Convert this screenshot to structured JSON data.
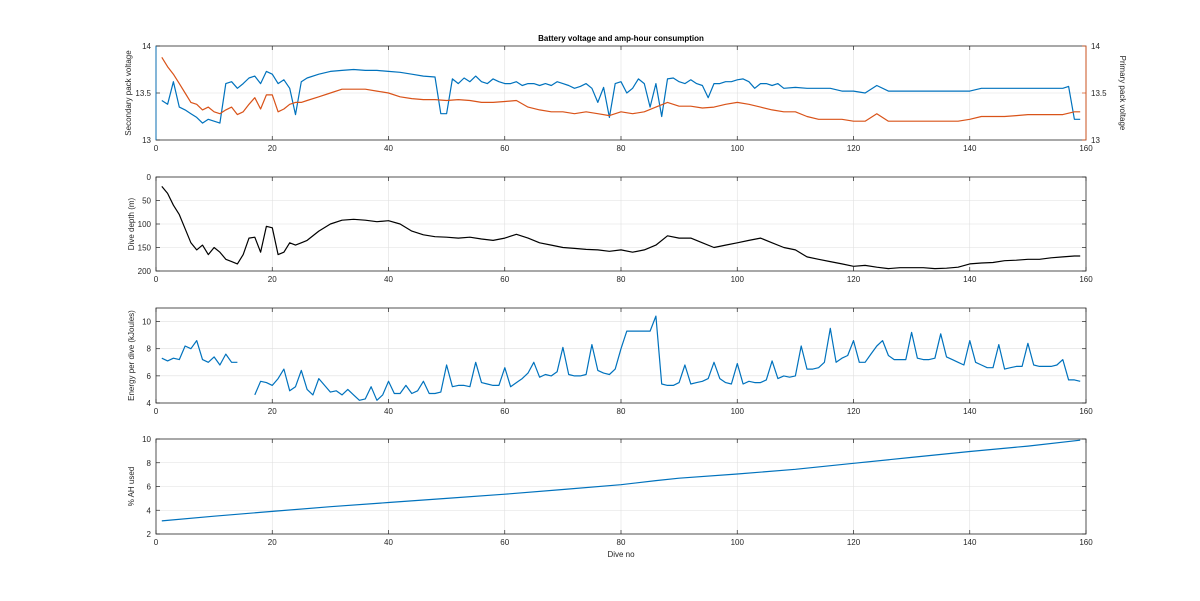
{
  "chart_data": [
    {
      "type": "line",
      "title": "Battery voltage and amp-hour consumption",
      "xlabel": "",
      "ylabel_left": "Secondary pack voltage",
      "ylabel_right": "Primary pack voltage",
      "xlim": [
        0,
        160
      ],
      "ylim": [
        13,
        14
      ],
      "ylim_right": [
        13,
        14
      ],
      "xticks": [
        0,
        20,
        40,
        60,
        80,
        100,
        120,
        140,
        160
      ],
      "yticks": [
        13,
        13.5,
        14
      ],
      "ytick_labels": [
        "13",
        "13.5",
        "14"
      ],
      "ytick_labels_right": [
        "13",
        "13.5",
        "14"
      ],
      "colors": {
        "left": "#0072bd",
        "right": "#d95319"
      },
      "grid": true,
      "series": [
        {
          "axis": "left",
          "color": "#0072bd",
          "x": [
            1,
            2,
            3,
            4,
            5,
            6,
            7,
            8,
            9,
            10,
            11,
            12,
            13,
            14,
            15,
            16,
            17,
            18,
            19,
            20,
            21,
            22,
            23,
            24,
            25,
            26,
            28,
            30,
            32,
            34,
            36,
            38,
            40,
            42,
            44,
            46,
            48,
            49,
            50,
            51,
            52,
            53,
            54,
            55,
            56,
            57,
            58,
            59,
            60,
            61,
            62,
            63,
            64,
            65,
            66,
            67,
            68,
            69,
            70,
            71,
            72,
            73,
            74,
            75,
            76,
            77,
            78,
            79,
            80,
            81,
            82,
            83,
            84,
            85,
            86,
            87,
            88,
            89,
            90,
            91,
            92,
            93,
            94,
            95,
            96,
            97,
            98,
            99,
            100,
            101,
            102,
            103,
            104,
            105,
            106,
            107,
            108,
            110,
            112,
            114,
            116,
            118,
            120,
            122,
            124,
            126,
            128,
            130,
            132,
            134,
            136,
            138,
            140,
            142,
            144,
            146,
            148,
            150,
            152,
            154,
            156,
            157,
            158,
            159
          ],
          "y": [
            13.42,
            13.38,
            13.62,
            13.35,
            13.32,
            13.28,
            13.24,
            13.18,
            13.22,
            13.2,
            13.18,
            13.6,
            13.62,
            13.55,
            13.6,
            13.66,
            13.68,
            13.6,
            13.73,
            13.7,
            13.6,
            13.64,
            13.55,
            13.27,
            13.62,
            13.66,
            13.7,
            13.73,
            13.74,
            13.75,
            13.74,
            13.74,
            13.73,
            13.72,
            13.7,
            13.68,
            13.67,
            13.28,
            13.28,
            13.65,
            13.6,
            13.66,
            13.62,
            13.68,
            13.62,
            13.6,
            13.65,
            13.62,
            13.6,
            13.6,
            13.62,
            13.58,
            13.6,
            13.6,
            13.58,
            13.6,
            13.58,
            13.62,
            13.6,
            13.58,
            13.55,
            13.57,
            13.6,
            13.55,
            13.4,
            13.56,
            13.24,
            13.6,
            13.62,
            13.5,
            13.55,
            13.65,
            13.6,
            13.35,
            13.6,
            13.25,
            13.65,
            13.66,
            13.62,
            13.6,
            13.64,
            13.6,
            13.58,
            13.45,
            13.6,
            13.6,
            13.62,
            13.62,
            13.64,
            13.65,
            13.62,
            13.55,
            13.6,
            13.6,
            13.58,
            13.6,
            13.55,
            13.56,
            13.55,
            13.55,
            13.55,
            13.52,
            13.52,
            13.5,
            13.58,
            13.52,
            13.52,
            13.52,
            13.52,
            13.52,
            13.52,
            13.52,
            13.52,
            13.55,
            13.55,
            13.55,
            13.55,
            13.55,
            13.55,
            13.55,
            13.55,
            13.57,
            13.22,
            13.22
          ]
        },
        {
          "axis": "right",
          "color": "#d95319",
          "x": [
            1,
            2,
            3,
            4,
            5,
            6,
            7,
            8,
            9,
            10,
            11,
            12,
            13,
            14,
            15,
            16,
            17,
            18,
            19,
            20,
            21,
            22,
            23,
            24,
            25,
            26,
            28,
            30,
            32,
            34,
            36,
            38,
            40,
            42,
            44,
            46,
            48,
            50,
            52,
            54,
            56,
            58,
            60,
            62,
            64,
            66,
            68,
            70,
            72,
            74,
            76,
            78,
            80,
            82,
            84,
            86,
            88,
            90,
            92,
            94,
            96,
            98,
            100,
            102,
            104,
            106,
            108,
            110,
            112,
            114,
            116,
            118,
            120,
            122,
            124,
            126,
            128,
            130,
            132,
            134,
            136,
            138,
            140,
            142,
            144,
            146,
            148,
            150,
            152,
            154,
            156,
            158,
            159
          ],
          "y": [
            13.88,
            13.78,
            13.7,
            13.6,
            13.5,
            13.4,
            13.38,
            13.32,
            13.35,
            13.3,
            13.28,
            13.32,
            13.35,
            13.27,
            13.3,
            13.38,
            13.45,
            13.33,
            13.48,
            13.48,
            13.3,
            13.33,
            13.38,
            13.4,
            13.4,
            13.42,
            13.46,
            13.5,
            13.54,
            13.54,
            13.54,
            13.52,
            13.5,
            13.46,
            13.44,
            13.43,
            13.43,
            13.42,
            13.43,
            13.42,
            13.4,
            13.4,
            13.41,
            13.42,
            13.35,
            13.32,
            13.3,
            13.3,
            13.28,
            13.3,
            13.28,
            13.26,
            13.3,
            13.28,
            13.3,
            13.35,
            13.4,
            13.36,
            13.36,
            13.34,
            13.35,
            13.38,
            13.4,
            13.38,
            13.35,
            13.32,
            13.3,
            13.3,
            13.25,
            13.22,
            13.22,
            13.22,
            13.2,
            13.2,
            13.28,
            13.2,
            13.2,
            13.2,
            13.2,
            13.2,
            13.2,
            13.2,
            13.22,
            13.25,
            13.25,
            13.25,
            13.26,
            13.27,
            13.27,
            13.27,
            13.27,
            13.3,
            13.3
          ]
        }
      ]
    },
    {
      "type": "line",
      "title": "",
      "xlabel": "",
      "ylabel": "Dive depth (m)",
      "xlim": [
        0,
        160
      ],
      "ylim": [
        0,
        200
      ],
      "y_reversed": true,
      "xticks": [
        0,
        20,
        40,
        60,
        80,
        100,
        120,
        140,
        160
      ],
      "yticks": [
        0,
        50,
        100,
        150,
        200
      ],
      "colors": {
        "line": "#000000"
      },
      "grid": true,
      "series": [
        {
          "color": "#000000",
          "x": [
            1,
            2,
            3,
            4,
            5,
            6,
            7,
            8,
            9,
            10,
            11,
            12,
            13,
            14,
            15,
            16,
            17,
            18,
            19,
            20,
            21,
            22,
            23,
            24,
            25,
            26,
            28,
            30,
            32,
            34,
            36,
            38,
            40,
            42,
            44,
            46,
            48,
            50,
            52,
            54,
            56,
            58,
            60,
            62,
            64,
            66,
            68,
            70,
            72,
            74,
            76,
            78,
            80,
            82,
            84,
            86,
            88,
            90,
            92,
            94,
            96,
            98,
            100,
            102,
            104,
            106,
            108,
            110,
            112,
            114,
            116,
            118,
            120,
            122,
            124,
            126,
            128,
            130,
            132,
            134,
            136,
            138,
            140,
            142,
            144,
            146,
            148,
            150,
            152,
            154,
            156,
            158,
            159
          ],
          "y": [
            20,
            35,
            60,
            80,
            110,
            140,
            155,
            145,
            165,
            150,
            160,
            175,
            180,
            185,
            165,
            130,
            128,
            160,
            105,
            108,
            165,
            160,
            140,
            145,
            140,
            135,
            115,
            100,
            92,
            90,
            92,
            95,
            93,
            100,
            115,
            123,
            127,
            128,
            130,
            128,
            132,
            135,
            130,
            122,
            130,
            140,
            145,
            150,
            152,
            154,
            155,
            158,
            155,
            160,
            155,
            145,
            125,
            130,
            130,
            140,
            150,
            145,
            140,
            135,
            130,
            140,
            150,
            155,
            170,
            175,
            180,
            185,
            190,
            188,
            192,
            195,
            193,
            193,
            193,
            195,
            194,
            192,
            185,
            183,
            182,
            178,
            177,
            175,
            175,
            172,
            170,
            168,
            168
          ]
        }
      ]
    },
    {
      "type": "line",
      "title": "",
      "xlabel": "",
      "ylabel": "Energy per dive (kJoules)",
      "xlim": [
        0,
        160
      ],
      "ylim": [
        4,
        11
      ],
      "xticks": [
        0,
        20,
        40,
        60,
        80,
        100,
        120,
        140,
        160
      ],
      "yticks": [
        4,
        6,
        8,
        10
      ],
      "colors": {
        "line": "#0072bd"
      },
      "grid": true,
      "series": [
        {
          "color": "#0072bd",
          "x": [
            1,
            2,
            3,
            4,
            5,
            6,
            7,
            8,
            9,
            10,
            11,
            12,
            13,
            14
          ],
          "y": [
            7.3,
            7.1,
            7.3,
            7.2,
            8.2,
            8.0,
            8.6,
            7.2,
            7.0,
            7.4,
            6.8,
            7.6,
            7.0,
            7.0
          ]
        },
        {
          "color": "#0072bd",
          "x": [
            17,
            18,
            19,
            20,
            21,
            22,
            23,
            24,
            25,
            26,
            27,
            28,
            29,
            30,
            31,
            32,
            33,
            34,
            35,
            36,
            37,
            38,
            39,
            40,
            41,
            42,
            43,
            44,
            45,
            46,
            47,
            48,
            49,
            50,
            51,
            52,
            53,
            54,
            55,
            56,
            57,
            58,
            59,
            60,
            61,
            62,
            63,
            64,
            65,
            66,
            67,
            68,
            69,
            70,
            71,
            72,
            73,
            74,
            75,
            76,
            77,
            78,
            79,
            80,
            81,
            82,
            83,
            84,
            85,
            86,
            87,
            88,
            89,
            90,
            91,
            92,
            93,
            94,
            95,
            96,
            97,
            98,
            99,
            100,
            101,
            102,
            103,
            104,
            105,
            106,
            107,
            108,
            109,
            110,
            111,
            112,
            113,
            114,
            115,
            116,
            117,
            118,
            119,
            120,
            121,
            122,
            123,
            124,
            125,
            126,
            127,
            128,
            129,
            130,
            131,
            132,
            133,
            134,
            135,
            136,
            137,
            138,
            139,
            140,
            141,
            142,
            143,
            144,
            145,
            146,
            147,
            148,
            149,
            150,
            151,
            152,
            153,
            154,
            155,
            156,
            157,
            158,
            159
          ],
          "y": [
            4.6,
            5.6,
            5.5,
            5.3,
            5.8,
            6.5,
            4.9,
            5.2,
            6.4,
            5.0,
            4.6,
            5.8,
            5.3,
            4.8,
            4.9,
            4.6,
            5.0,
            4.6,
            4.2,
            4.3,
            5.2,
            4.2,
            4.6,
            5.6,
            4.7,
            4.7,
            5.3,
            4.7,
            4.9,
            5.6,
            4.7,
            4.7,
            4.8,
            6.8,
            5.2,
            5.3,
            5.3,
            5.2,
            7.0,
            5.5,
            5.4,
            5.3,
            5.3,
            6.6,
            5.2,
            5.5,
            5.8,
            6.2,
            7.0,
            5.9,
            6.1,
            6.0,
            6.3,
            8.1,
            6.1,
            6.0,
            6.0,
            6.1,
            8.3,
            6.4,
            6.2,
            6.1,
            6.5,
            8.0,
            9.3,
            9.3,
            9.3,
            9.3,
            9.3,
            10.4,
            5.4,
            5.3,
            5.3,
            5.5,
            6.8,
            5.4,
            5.5,
            5.6,
            5.8,
            7.0,
            5.8,
            5.5,
            5.4,
            6.9,
            5.4,
            5.6,
            5.5,
            5.5,
            5.7,
            7.1,
            5.8,
            6.0,
            5.9,
            6.0,
            8.2,
            6.5,
            6.5,
            6.6,
            7.0,
            9.5,
            7.0,
            7.3,
            7.5,
            8.6,
            7.0,
            7.0,
            7.6,
            8.2,
            8.6,
            7.5,
            7.2,
            7.2,
            7.2,
            9.2,
            7.3,
            7.2,
            7.2,
            7.3,
            9.1,
            7.4,
            7.2,
            7.0,
            6.8,
            8.6,
            7.0,
            6.8,
            6.6,
            6.6,
            8.3,
            6.5,
            6.6,
            6.7,
            6.7,
            8.4,
            6.8,
            6.7,
            6.7,
            6.7,
            6.8,
            7.2,
            5.7,
            5.7,
            5.6
          ]
        }
      ]
    },
    {
      "type": "line",
      "title": "",
      "xlabel": "Dive no",
      "ylabel": "% AH used",
      "xlim": [
        0,
        160
      ],
      "ylim": [
        2,
        10
      ],
      "xticks": [
        0,
        20,
        40,
        60,
        80,
        100,
        120,
        140,
        160
      ],
      "yticks": [
        2,
        4,
        6,
        8,
        10
      ],
      "colors": {
        "line": "#0072bd"
      },
      "grid": true,
      "series": [
        {
          "color": "#0072bd",
          "x": [
            1,
            10,
            20,
            30,
            40,
            50,
            60,
            70,
            80,
            86,
            90,
            100,
            110,
            120,
            130,
            140,
            150,
            159
          ],
          "y": [
            3.1,
            3.5,
            3.9,
            4.3,
            4.65,
            5.0,
            5.35,
            5.75,
            6.15,
            6.5,
            6.7,
            7.05,
            7.45,
            7.95,
            8.45,
            8.95,
            9.4,
            9.9
          ]
        }
      ]
    }
  ]
}
